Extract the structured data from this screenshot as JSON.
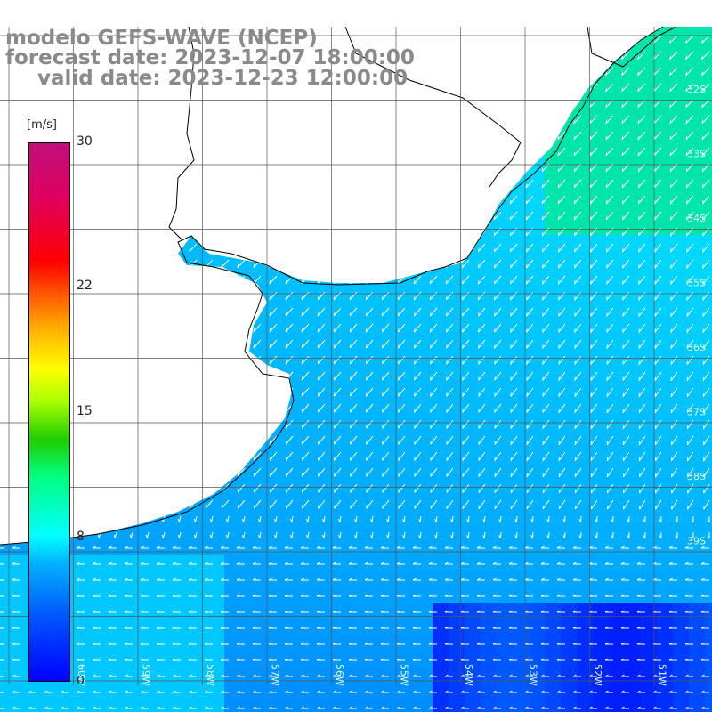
{
  "title": {
    "line1": "modelo GEFS-WAVE (NCEP)",
    "line2": "forecast date: 2023-12-07 18:00:00",
    "line3": "valid date: 2023-12-23 12:00:00"
  },
  "legend": {
    "unit": "[m/s]",
    "ticks": [
      {
        "label": "30",
        "value": 30
      },
      {
        "label": "22",
        "value": 22
      },
      {
        "label": "15",
        "value": 15
      },
      {
        "label": "8",
        "value": 8
      },
      {
        "label": "0",
        "value": 0
      }
    ],
    "range": [
      0,
      30
    ]
  },
  "map": {
    "field": "wind speed",
    "lat_labels": [
      "32S",
      "33S",
      "34S",
      "35S",
      "36S",
      "37S",
      "38S",
      "39S"
    ],
    "lon_labels": [
      "60W",
      "59W",
      "58W",
      "57W",
      "56W",
      "55W",
      "54W",
      "53W",
      "52W",
      "51W"
    ],
    "colors": {
      "land": "#ffffff",
      "grid": "#555555",
      "coast": "#000000",
      "arrows": "#ffffff",
      "title": "#8a8a8a"
    }
  }
}
